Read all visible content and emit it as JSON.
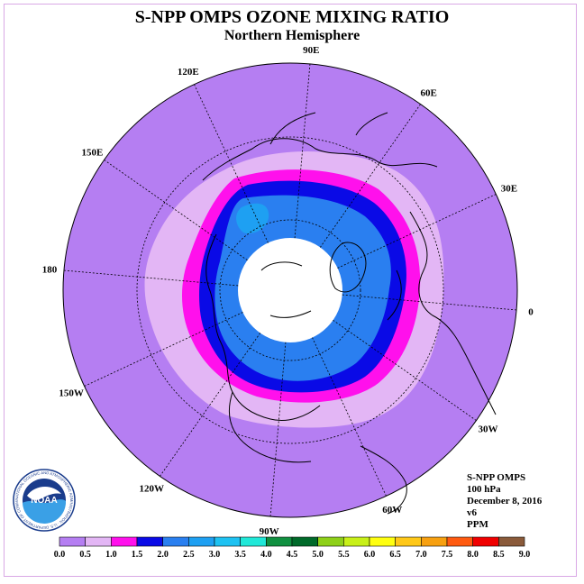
{
  "header": {
    "title": "S-NPP OMPS OZONE MIXING RATIO",
    "subtitle": "Northern Hemisphere"
  },
  "map": {
    "projection": "north polar stereographic",
    "longitude_labels": [
      {
        "text": "90E",
        "lon": 90
      },
      {
        "text": "60E",
        "lon": 60
      },
      {
        "text": "30E",
        "lon": 30
      },
      {
        "text": "0",
        "lon": 0
      },
      {
        "text": "30W",
        "lon": -30
      },
      {
        "text": "60W",
        "lon": -60
      },
      {
        "text": "90W",
        "lon": -90
      },
      {
        "text": "120W",
        "lon": -120
      },
      {
        "text": "150W",
        "lon": -150
      },
      {
        "text": "180",
        "lon": 180
      },
      {
        "text": "150E",
        "lon": 150
      },
      {
        "text": "120E",
        "lon": 120
      }
    ],
    "colors": {
      "background_disk": "#b57ef2",
      "ring_0_5_1_0": "#e3b6f5",
      "ring_1_0_1_5": "#ff10ec",
      "ring_1_5_2_0": "#0a0ae6",
      "ring_2_0_2_5": "#2a7ff0",
      "ring_2_5_3_0": "#1ea0f2",
      "no_data_polar_cap": "#ffffff",
      "coastline": "#000000",
      "graticule": "#000000"
    }
  },
  "info": {
    "instrument": "S-NPP OMPS",
    "level": "100 hPa",
    "date": "December 8, 2016",
    "version": "v6",
    "units": "PPM"
  },
  "logo": {
    "text": "NOAA",
    "ring_text": "NATIONAL OCEANIC AND ATMOSPHERIC ADMINISTRATION · U.S. DEPARTMENT OF COMMERCE"
  },
  "colorbar": {
    "ticks": [
      "0.0",
      "0.5",
      "1.0",
      "1.5",
      "2.0",
      "2.5",
      "3.0",
      "3.5",
      "4.0",
      "4.5",
      "5.0",
      "5.5",
      "6.0",
      "6.5",
      "7.0",
      "7.5",
      "8.0",
      "8.5",
      "9.0"
    ],
    "colors": [
      "#b57ef2",
      "#e3b6f5",
      "#ff10ec",
      "#0a0ae6",
      "#2a7ff0",
      "#1ea0f2",
      "#1ec2f2",
      "#20e8d8",
      "#109040",
      "#006a2a",
      "#8ed018",
      "#c8f018",
      "#ffff10",
      "#ffc818",
      "#f7a010",
      "#ff5a10",
      "#f00000",
      "#8a5a3a"
    ]
  }
}
